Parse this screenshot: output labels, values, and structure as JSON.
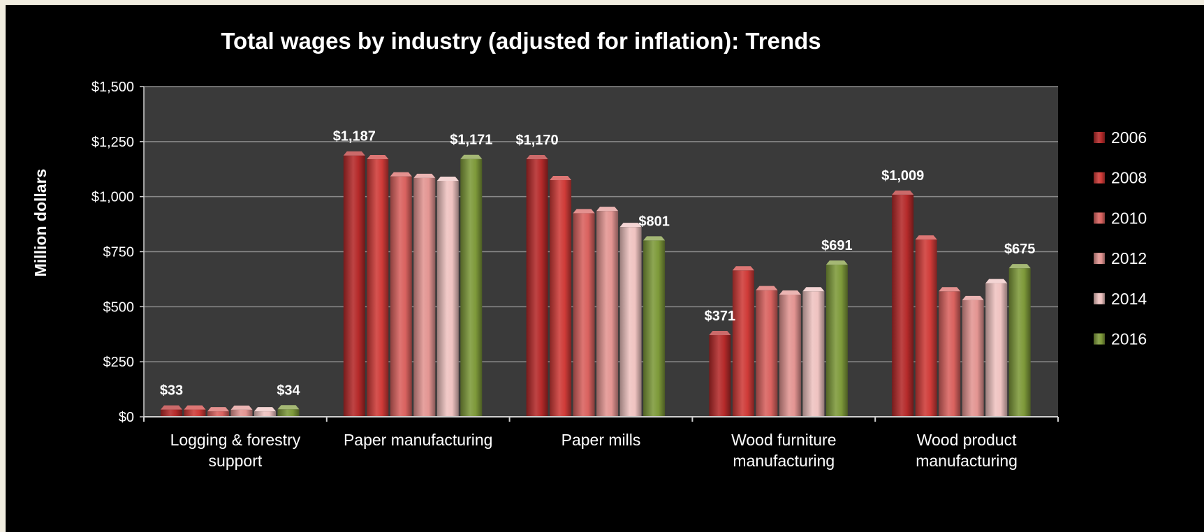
{
  "chart_data": {
    "type": "bar",
    "title": "Total wages by industry (adjusted for inflation): Trends",
    "ylabel": "Million dollars",
    "xlabel": "",
    "ylim": [
      0,
      1500
    ],
    "yticks": [
      0,
      250,
      500,
      750,
      1000,
      1250,
      1500
    ],
    "ytick_labels": [
      "$0",
      "$250",
      "$500",
      "$750",
      "$1,000",
      "$1,250",
      "$1,500"
    ],
    "grid": true,
    "legend_position": "right",
    "categories": [
      [
        "Logging & forestry",
        "support"
      ],
      [
        "Paper manufacturing"
      ],
      [
        "Paper mills"
      ],
      [
        "Wood furniture",
        "manufacturing"
      ],
      [
        "Wood product",
        "manufacturing"
      ]
    ],
    "series": [
      {
        "name": "2006",
        "color": "#b52a2a",
        "values": [
          33,
          1187,
          1170,
          371,
          1009
        ]
      },
      {
        "name": "2008",
        "color": "#cf3b38",
        "values": [
          33,
          1170,
          1075,
          665,
          805
        ]
      },
      {
        "name": "2010",
        "color": "#d9625f",
        "values": [
          25,
          1092,
          925,
          575,
          570
        ]
      },
      {
        "name": "2012",
        "color": "#e39592",
        "values": [
          32,
          1085,
          935,
          555,
          530
        ]
      },
      {
        "name": "2014",
        "color": "#efc3c1",
        "values": [
          25,
          1072,
          862,
          570,
          607
        ]
      },
      {
        "name": "2016",
        "color": "#7e9a3a",
        "values": [
          34,
          1171,
          801,
          691,
          675
        ]
      }
    ],
    "data_labels": [
      {
        "category": 0,
        "series": 0,
        "text": "$33"
      },
      {
        "category": 0,
        "series": 5,
        "text": "$34"
      },
      {
        "category": 1,
        "series": 0,
        "text": "$1,187"
      },
      {
        "category": 1,
        "series": 5,
        "text": "$1,171"
      },
      {
        "category": 2,
        "series": 0,
        "text": "$1,170"
      },
      {
        "category": 2,
        "series": 5,
        "text": "$801"
      },
      {
        "category": 3,
        "series": 0,
        "text": "$371"
      },
      {
        "category": 3,
        "series": 5,
        "text": "$691"
      },
      {
        "category": 4,
        "series": 0,
        "text": "$1,009"
      },
      {
        "category": 4,
        "series": 5,
        "text": "$675"
      }
    ],
    "colors": {
      "background": "#000000",
      "plot_area": "#3a3a3a",
      "gridline": "#8a8a8a",
      "text": "#ffffff"
    }
  }
}
